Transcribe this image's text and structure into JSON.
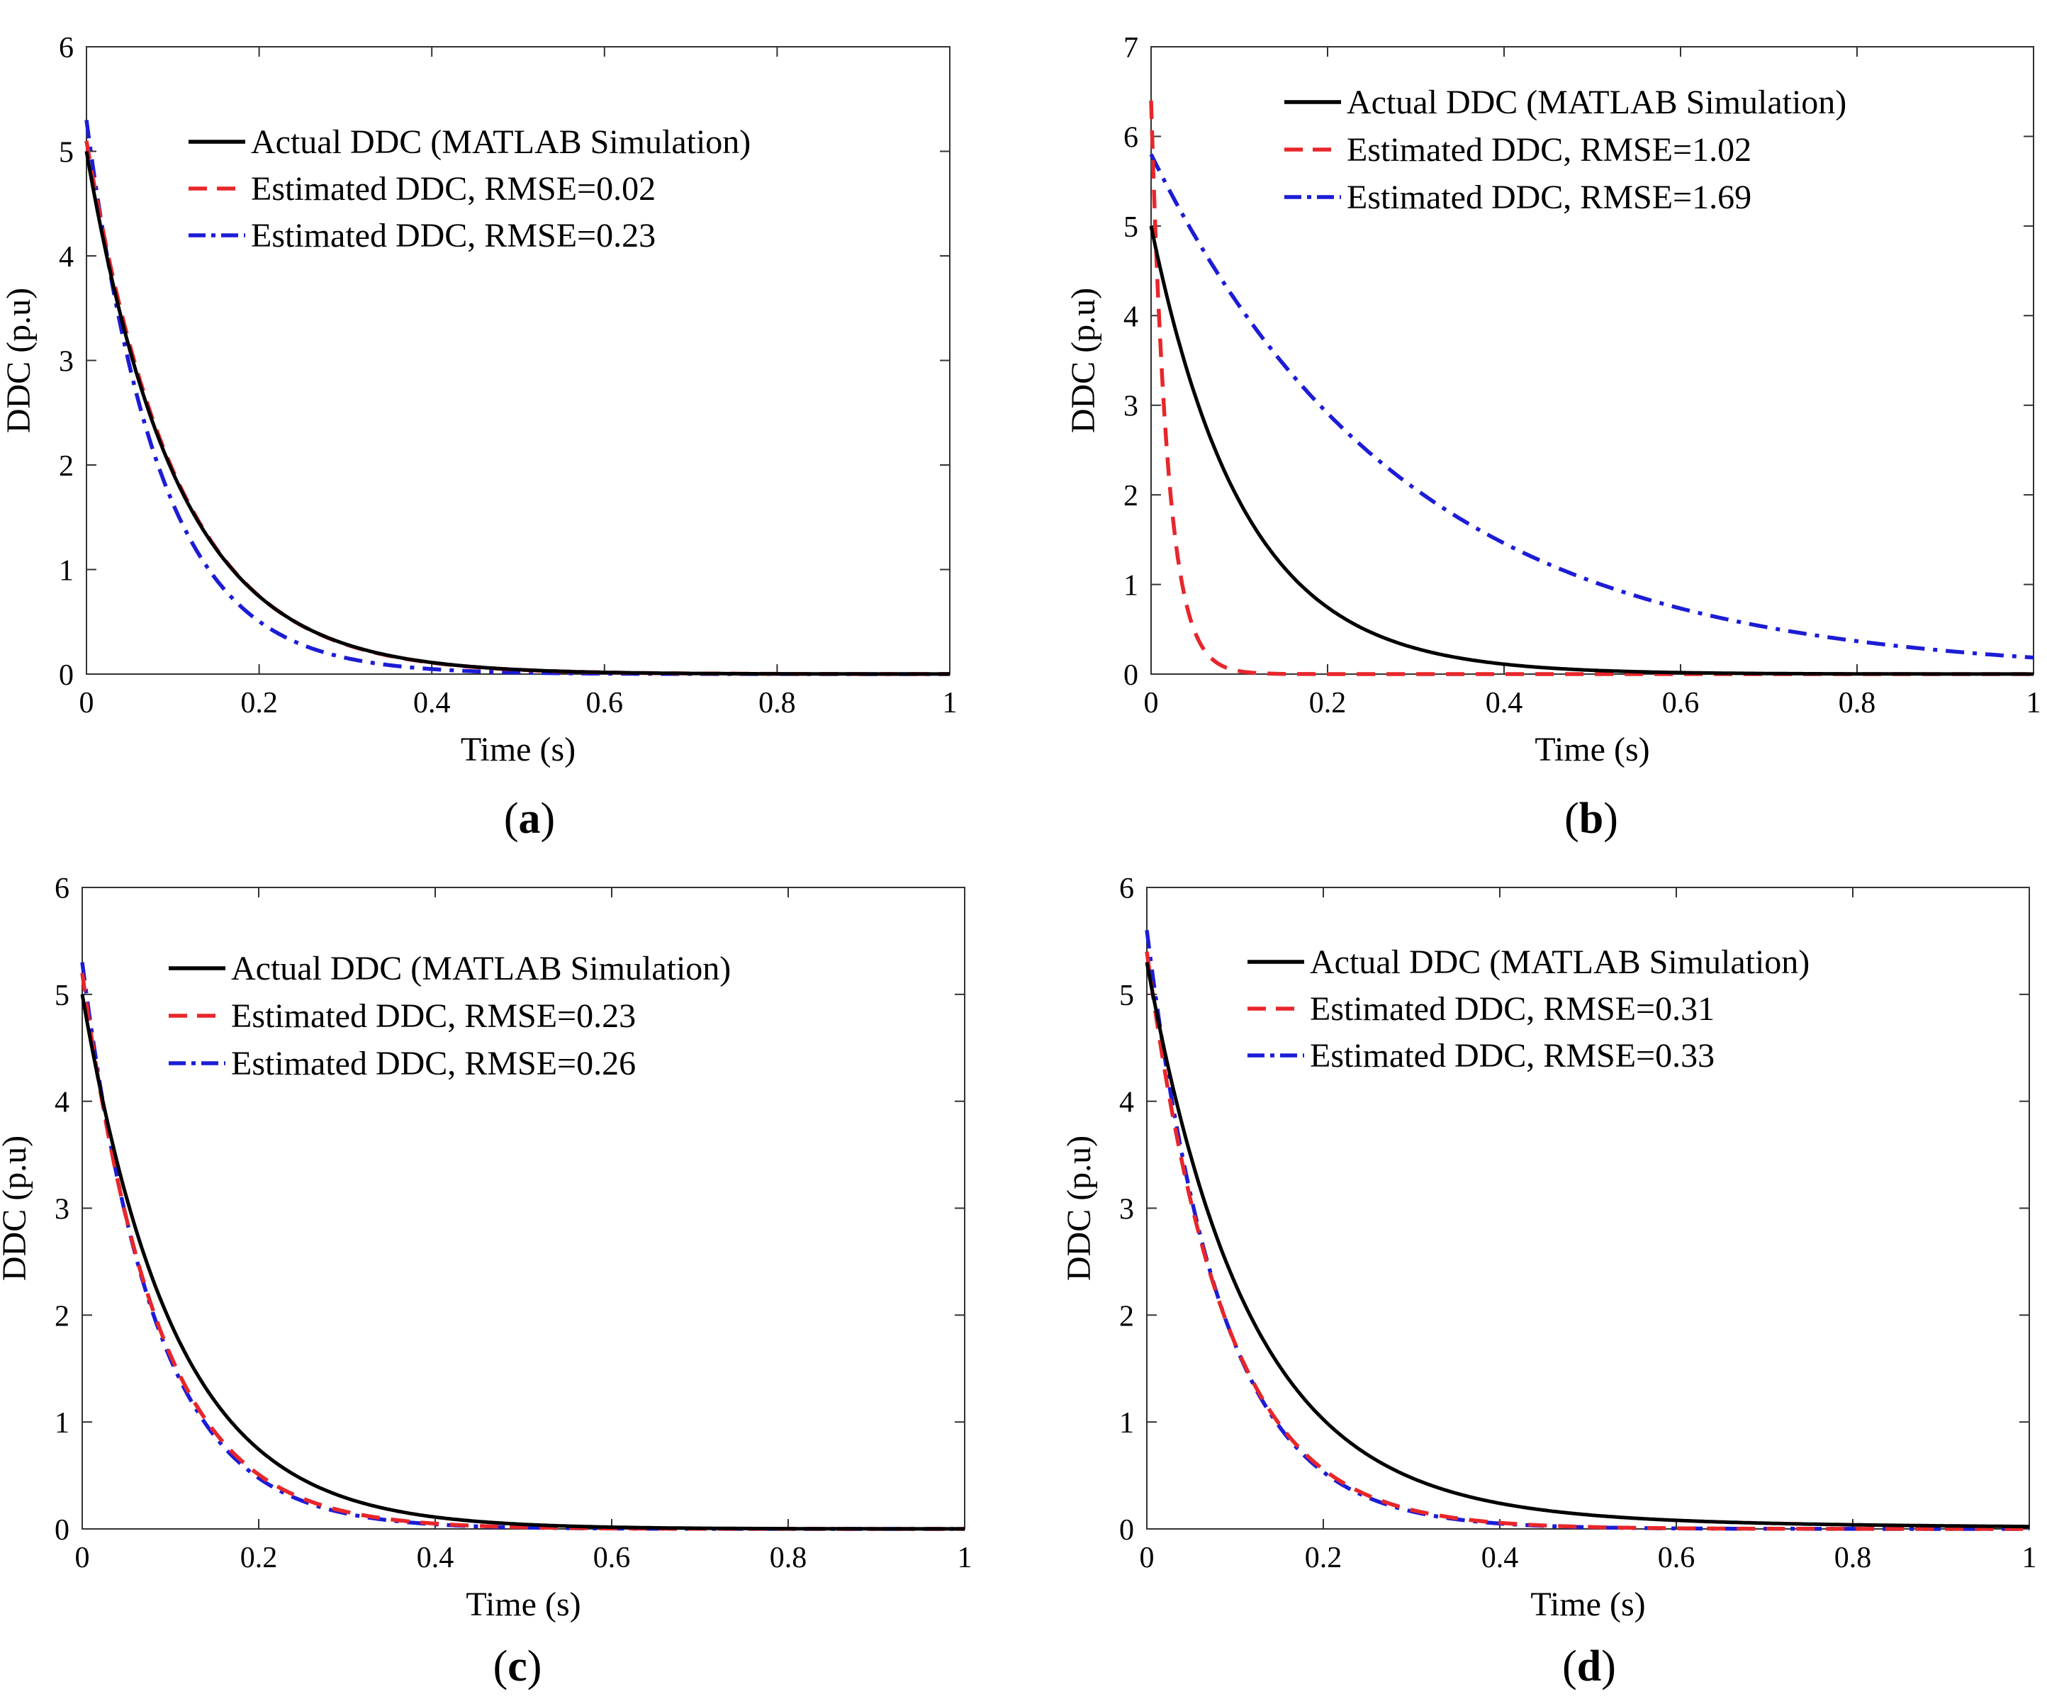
{
  "chart_data": [
    {
      "id": "a",
      "type": "line",
      "panel_label": "a",
      "xlabel": "Time (s)",
      "ylabel": "DDC (p.u)",
      "xlim": [
        0,
        1
      ],
      "ylim": [
        0,
        6
      ],
      "xticks": [
        "0",
        "0.2",
        "0.4",
        "0.6",
        "0.8",
        "1"
      ],
      "yticks": [
        "0",
        "1",
        "2",
        "3",
        "4",
        "5",
        "6"
      ],
      "legend_position": "top-right",
      "series": [
        {
          "name": "Actual DDC (MATLAB Simulation)",
          "style": "solid",
          "color": "#000000",
          "y0": 5.0,
          "tau": 0.105,
          "x": [
            0,
            0.1,
            0.2,
            0.3,
            0.4,
            0.5,
            0.6,
            0.8,
            1.0
          ],
          "y": [
            5.0,
            1.93,
            0.74,
            0.29,
            0.11,
            0.04,
            0.02,
            0.0,
            0.0
          ]
        },
        {
          "name": "Estimated DDC, RMSE=0.02",
          "style": "dashed",
          "color": "#e8262a",
          "y0": 5.1,
          "tau": 0.104,
          "x": [
            0,
            0.1,
            0.2,
            0.3,
            0.4,
            0.5,
            0.6,
            0.8,
            1.0
          ],
          "y": [
            5.1,
            1.95,
            0.74,
            0.28,
            0.11,
            0.04,
            0.02,
            0.0,
            0.0
          ]
        },
        {
          "name": "Estimated DDC, RMSE=0.23",
          "style": "dashdot",
          "color": "#1c1cd6",
          "y0": 5.3,
          "tau": 0.085,
          "x": [
            0,
            0.1,
            0.2,
            0.3,
            0.4,
            0.5,
            0.6,
            0.8,
            1.0
          ],
          "y": [
            5.3,
            1.63,
            0.5,
            0.16,
            0.05,
            0.01,
            0.0,
            0.0,
            0.0
          ]
        }
      ]
    },
    {
      "id": "b",
      "type": "line",
      "panel_label": "b",
      "xlabel": "Time (s)",
      "ylabel": "DDC (p.u)",
      "xlim": [
        0,
        1
      ],
      "ylim": [
        0,
        7
      ],
      "xticks": [
        "0",
        "0.2",
        "0.4",
        "0.6",
        "0.8",
        "1"
      ],
      "yticks": [
        "0",
        "1",
        "2",
        "3",
        "4",
        "5",
        "6",
        "7"
      ],
      "legend_position": "top-right",
      "series": [
        {
          "name": "Actual DDC (MATLAB Simulation)",
          "style": "solid",
          "color": "#000000",
          "y0": 5.0,
          "tau": 0.105,
          "x": [
            0,
            0.1,
            0.2,
            0.3,
            0.4,
            0.5,
            0.6,
            0.8,
            1.0
          ],
          "y": [
            5.0,
            1.93,
            0.74,
            0.29,
            0.11,
            0.04,
            0.02,
            0.0,
            0.0
          ]
        },
        {
          "name": "Estimated DDC, RMSE=1.02",
          "style": "dashed",
          "color": "#e8262a",
          "y0": 6.4,
          "tau": 0.019,
          "x": [
            0,
            0.02,
            0.05,
            0.08,
            0.1,
            0.15,
            0.2,
            0.5,
            1.0
          ],
          "y": [
            6.4,
            2.23,
            0.46,
            0.09,
            0.03,
            0.0,
            0.0,
            0.0,
            0.0
          ]
        },
        {
          "name": "Estimated DDC, RMSE=1.69",
          "style": "dashdot",
          "color": "#1c1cd6",
          "y0": 5.8,
          "tau": 0.29,
          "x": [
            0,
            0.1,
            0.2,
            0.3,
            0.4,
            0.5,
            0.6,
            0.8,
            1.0
          ],
          "y": [
            5.8,
            4.11,
            2.92,
            2.07,
            1.46,
            1.04,
            0.74,
            0.37,
            0.15
          ]
        }
      ]
    },
    {
      "id": "c",
      "type": "line",
      "panel_label": "c",
      "xlabel": "Time (s)",
      "ylabel": "DDC (p.u)",
      "xlim": [
        0,
        1
      ],
      "ylim": [
        0,
        6
      ],
      "xticks": [
        "0",
        "0.2",
        "0.4",
        "0.6",
        "0.8",
        "1"
      ],
      "yticks": [
        "0",
        "1",
        "2",
        "3",
        "4",
        "5",
        "6"
      ],
      "legend_position": "top-right",
      "series": [
        {
          "name": "Actual DDC (MATLAB Simulation)",
          "style": "solid",
          "color": "#000000",
          "y0": 5.0,
          "tau": 0.105,
          "x": [
            0,
            0.1,
            0.2,
            0.3,
            0.4,
            0.5,
            0.6,
            0.8,
            1.0
          ],
          "y": [
            5.0,
            1.93,
            0.74,
            0.29,
            0.11,
            0.04,
            0.02,
            0.0,
            0.0
          ]
        },
        {
          "name": "Estimated DDC, RMSE=0.23",
          "style": "dashed",
          "color": "#e8262a",
          "y0": 5.2,
          "tau": 0.086,
          "x": [
            0,
            0.1,
            0.2,
            0.3,
            0.4,
            0.5,
            0.6,
            0.8,
            1.0
          ],
          "y": [
            5.2,
            1.63,
            0.51,
            0.16,
            0.05,
            0.02,
            0.0,
            0.0,
            0.0
          ]
        },
        {
          "name": "Estimated DDC, RMSE=0.26",
          "style": "dashdot",
          "color": "#1c1cd6",
          "y0": 5.3,
          "tau": 0.083,
          "x": [
            0,
            0.1,
            0.2,
            0.3,
            0.4,
            0.5,
            0.6,
            0.8,
            1.0
          ],
          "y": [
            5.3,
            1.59,
            0.48,
            0.14,
            0.04,
            0.01,
            0.0,
            0.0,
            0.0
          ]
        }
      ]
    },
    {
      "id": "d",
      "type": "line",
      "panel_label": "d",
      "xlabel": "Time (s)",
      "ylabel": "DDC (p.u)",
      "xlim": [
        0,
        1
      ],
      "ylim": [
        0,
        6
      ],
      "xticks": [
        "0",
        "0.2",
        "0.4",
        "0.6",
        "0.8",
        "1"
      ],
      "yticks": [
        "0",
        "1",
        "2",
        "3",
        "4",
        "5",
        "6"
      ],
      "legend_position": "top-right",
      "series": [
        {
          "name": "Actual DDC (MATLAB Simulation)",
          "style": "solid",
          "color": "#000000",
          "y0": 5.3,
          "tau": 0.115,
          "tail_a": 0.2,
          "tail_tau": 0.45,
          "x": [
            0,
            0.1,
            0.2,
            0.3,
            0.4,
            0.5,
            0.6,
            0.8,
            1.0
          ],
          "y": [
            5.3,
            2.13,
            0.87,
            0.42,
            0.24,
            0.15,
            0.1,
            0.04,
            0.03
          ]
        },
        {
          "name": "Estimated DDC, RMSE=0.31",
          "style": "dashed",
          "color": "#e8262a",
          "y0": 5.4,
          "tau": 0.088,
          "x": [
            0,
            0.1,
            0.2,
            0.3,
            0.4,
            0.5,
            0.6,
            0.8,
            1.0
          ],
          "y": [
            5.4,
            1.72,
            0.55,
            0.18,
            0.06,
            0.02,
            0.0,
            0.0,
            0.0
          ]
        },
        {
          "name": "Estimated DDC, RMSE=0.33",
          "style": "dashdot",
          "color": "#1c1cd6",
          "y0": 5.6,
          "tau": 0.085,
          "x": [
            0,
            0.1,
            0.2,
            0.3,
            0.4,
            0.5,
            0.6,
            0.8,
            1.0
          ],
          "y": [
            5.6,
            1.73,
            0.53,
            0.17,
            0.05,
            0.02,
            0.0,
            0.0,
            0.0
          ]
        }
      ]
    }
  ]
}
